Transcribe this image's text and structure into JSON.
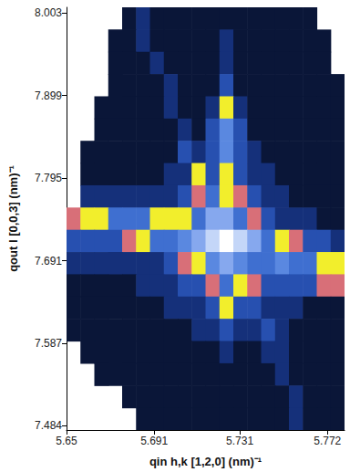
{
  "chart_data": {
    "type": "heatmap",
    "x_label": "qin h,k [1,2,0] (nm)⁻¹",
    "y_label": "qout l [0,0,3] (nm)⁻¹",
    "x": [
      5.65325,
      5.65975,
      5.66625,
      5.67275,
      5.67925,
      5.68575,
      5.69225,
      5.69875,
      5.70525,
      5.71175,
      5.71825,
      5.72475,
      5.73125,
      5.73775,
      5.74425,
      5.75075,
      5.75725,
      5.76375,
      5.77025,
      5.77675
    ],
    "y": [
      7.996,
      7.968,
      7.94,
      7.912,
      7.884,
      7.856,
      7.828,
      7.8,
      7.772,
      7.744,
      7.716,
      7.688,
      7.66,
      7.632,
      7.604,
      7.576,
      7.548,
      7.52,
      7.492
    ],
    "values": [
      [
        null,
        null,
        null,
        null,
        1,
        2,
        1,
        1,
        1,
        1,
        1,
        1,
        1,
        1,
        1,
        1,
        1,
        1,
        null,
        null
      ],
      [
        null,
        null,
        null,
        1,
        1,
        2,
        1,
        1,
        1,
        1,
        1,
        2,
        1,
        1,
        1,
        1,
        1,
        1,
        1,
        null
      ],
      [
        null,
        null,
        null,
        1,
        1,
        1,
        2,
        1,
        1,
        1,
        1,
        2,
        1,
        1,
        1,
        1,
        1,
        1,
        1,
        null
      ],
      [
        null,
        null,
        null,
        1,
        1,
        1,
        1,
        2,
        1,
        1,
        1,
        3,
        1,
        1,
        1,
        1,
        1,
        1,
        1,
        1
      ],
      [
        null,
        null,
        1,
        1,
        1,
        1,
        1,
        2,
        1,
        1,
        2,
        5,
        2,
        1,
        1,
        1,
        1,
        1,
        1,
        1
      ],
      [
        null,
        null,
        1,
        1,
        1,
        1,
        1,
        1,
        2,
        1,
        3,
        7,
        3,
        1,
        1,
        1,
        1,
        1,
        1,
        1
      ],
      [
        null,
        1,
        1,
        1,
        1,
        1,
        1,
        1,
        3,
        2,
        3,
        7,
        3,
        2,
        1,
        1,
        1,
        1,
        1,
        1
      ],
      [
        null,
        1,
        1,
        1,
        1,
        1,
        1,
        2,
        2,
        5,
        3,
        5,
        3,
        2,
        2,
        1,
        1,
        1,
        1,
        1
      ],
      [
        null,
        2,
        2,
        2,
        2,
        2,
        2,
        2,
        3,
        4,
        6,
        5,
        4,
        3,
        2,
        2,
        1,
        1,
        1,
        1
      ],
      [
        4,
        5,
        5,
        6,
        6,
        6,
        5,
        5,
        5,
        6,
        8,
        8,
        6,
        4,
        3,
        2,
        2,
        2,
        1,
        1
      ],
      [
        3,
        3,
        3,
        3,
        4,
        5,
        6,
        6,
        7,
        8,
        9,
        10,
        9,
        8,
        6,
        5,
        4,
        3,
        3,
        2
      ],
      [
        2,
        2,
        2,
        2,
        2,
        2,
        2,
        3,
        4,
        5,
        7,
        8,
        7,
        6,
        6,
        7,
        6,
        6,
        5,
        5
      ],
      [
        1,
        1,
        1,
        1,
        1,
        2,
        2,
        2,
        3,
        3,
        4,
        6,
        5,
        4,
        3,
        3,
        3,
        3,
        4,
        4
      ],
      [
        1,
        1,
        1,
        1,
        1,
        1,
        1,
        2,
        2,
        2,
        3,
        5,
        3,
        3,
        2,
        2,
        2,
        1,
        1,
        1
      ],
      [
        1,
        1,
        1,
        1,
        1,
        1,
        1,
        1,
        1,
        2,
        2,
        3,
        2,
        2,
        3,
        2,
        1,
        1,
        1,
        1
      ],
      [
        null,
        1,
        1,
        1,
        1,
        1,
        1,
        1,
        1,
        1,
        1,
        2,
        1,
        1,
        2,
        2,
        1,
        1,
        1,
        1
      ],
      [
        null,
        null,
        1,
        1,
        1,
        1,
        1,
        1,
        1,
        1,
        1,
        1,
        1,
        1,
        1,
        2,
        1,
        1,
        1,
        1
      ],
      [
        null,
        null,
        null,
        null,
        1,
        1,
        1,
        1,
        1,
        1,
        1,
        1,
        1,
        1,
        1,
        1,
        2,
        1,
        1,
        1
      ],
      [
        null,
        null,
        null,
        null,
        null,
        1,
        1,
        1,
        1,
        1,
        1,
        1,
        1,
        1,
        1,
        1,
        2,
        1,
        1,
        1
      ]
    ],
    "zlim": [
      0,
      10
    ],
    "xlim": [
      5.65,
      5.78
    ],
    "ylim": [
      7.478,
      8.01
    ],
    "xticks": [
      5.65,
      5.691,
      5.731,
      5.772
    ],
    "yticks": [
      7.484,
      7.587,
      7.691,
      7.795,
      7.899,
      8.003
    ],
    "grid": false
  }
}
